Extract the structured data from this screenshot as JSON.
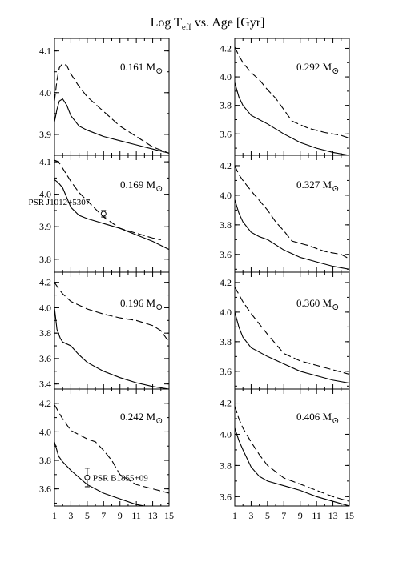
{
  "title": {
    "main": "Log T",
    "sub": "eff",
    "rest": " vs. Age [Gyr]"
  },
  "sun_symbol": "⊙",
  "x_ticks": [
    "1",
    "3",
    "5",
    "7",
    "9",
    "11",
    "13",
    "15"
  ],
  "chart_data": [
    {
      "type": "line",
      "panel": "left-1",
      "mass_value": "0.161 M",
      "xlim": [
        1,
        15
      ],
      "ylim": [
        3.85,
        4.13
      ],
      "yticks": [
        {
          "value": 3.9,
          "label": "3.9"
        },
        {
          "value": 4.0,
          "label": "4.0"
        },
        {
          "value": 4.1,
          "label": "4.1"
        }
      ],
      "series": [
        {
          "style": "solid",
          "points": [
            [
              1.0,
              3.93
            ],
            [
              1.3,
              3.96
            ],
            [
              1.6,
              3.98
            ],
            [
              2.0,
              3.985
            ],
            [
              2.5,
              3.97
            ],
            [
              3.0,
              3.945
            ],
            [
              4.0,
              3.92
            ],
            [
              5.0,
              3.91
            ],
            [
              7.0,
              3.895
            ],
            [
              9.0,
              3.885
            ],
            [
              11.0,
              3.875
            ],
            [
              13.0,
              3.865
            ],
            [
              15.0,
              3.855
            ]
          ]
        },
        {
          "style": "dashed",
          "points": [
            [
              1.0,
              3.98
            ],
            [
              1.3,
              4.03
            ],
            [
              1.6,
              4.06
            ],
            [
              2.0,
              4.07
            ],
            [
              2.5,
              4.065
            ],
            [
              3.0,
              4.045
            ],
            [
              4.0,
              4.015
            ],
            [
              5.0,
              3.99
            ],
            [
              7.0,
              3.955
            ],
            [
              9.0,
              3.92
            ],
            [
              11.0,
              3.895
            ],
            [
              13.0,
              3.87
            ],
            [
              15.0,
              3.855
            ]
          ]
        }
      ],
      "annotations": []
    },
    {
      "type": "line",
      "panel": "left-2",
      "mass_value": "0.169 M",
      "xlim": [
        1,
        15
      ],
      "ylim": [
        3.76,
        4.12
      ],
      "yticks": [
        {
          "value": 3.8,
          "label": "3.8"
        },
        {
          "value": 3.9,
          "label": "3.9"
        },
        {
          "value": 4.0,
          "label": "4.0"
        },
        {
          "value": 4.1,
          "label": "4.1"
        }
      ],
      "series": [
        {
          "style": "solid",
          "points": [
            [
              1.0,
              4.045
            ],
            [
              1.5,
              4.035
            ],
            [
              2.0,
              4.02
            ],
            [
              3.0,
              3.96
            ],
            [
              4.0,
              3.935
            ],
            [
              5.0,
              3.925
            ],
            [
              7.0,
              3.91
            ],
            [
              9.0,
              3.895
            ],
            [
              11.0,
              3.875
            ],
            [
              13.0,
              3.855
            ],
            [
              15.0,
              3.83
            ]
          ]
        },
        {
          "style": "dashed",
          "points": [
            [
              1.0,
              4.105
            ],
            [
              1.5,
              4.1
            ],
            [
              2.0,
              4.08
            ],
            [
              3.0,
              4.04
            ],
            [
              4.0,
              4.005
            ],
            [
              5.0,
              3.98
            ],
            [
              7.0,
              3.93
            ],
            [
              9.0,
              3.895
            ],
            [
              11.0,
              3.88
            ],
            [
              13.0,
              3.865
            ],
            [
              14.0,
              3.86
            ]
          ]
        }
      ],
      "annotations": [
        {
          "label": "PSR J1012+5307",
          "x": 7.0,
          "y": 3.94,
          "yerr": 0.01
        }
      ]
    },
    {
      "type": "line",
      "panel": "left-3",
      "mass_value": "0.196 M",
      "xlim": [
        1,
        15
      ],
      "ylim": [
        3.36,
        4.28
      ],
      "yticks": [
        {
          "value": 3.4,
          "label": "3.4"
        },
        {
          "value": 3.6,
          "label": "3.6"
        },
        {
          "value": 3.8,
          "label": "3.8"
        },
        {
          "value": 4.0,
          "label": "4.0"
        },
        {
          "value": 4.2,
          "label": "4.2"
        }
      ],
      "series": [
        {
          "style": "solid",
          "points": [
            [
              1.0,
              4.0
            ],
            [
              1.3,
              3.83
            ],
            [
              1.7,
              3.76
            ],
            [
              2.0,
              3.73
            ],
            [
              3.0,
              3.7
            ],
            [
              4.0,
              3.63
            ],
            [
              5.0,
              3.57
            ],
            [
              7.0,
              3.5
            ],
            [
              9.0,
              3.45
            ],
            [
              11.0,
              3.41
            ],
            [
              13.0,
              3.38
            ],
            [
              15.0,
              3.36
            ]
          ]
        },
        {
          "style": "dashed",
          "points": [
            [
              1.0,
              4.2
            ],
            [
              1.5,
              4.15
            ],
            [
              2.0,
              4.11
            ],
            [
              3.0,
              4.05
            ],
            [
              5.0,
              3.99
            ],
            [
              7.0,
              3.95
            ],
            [
              9.0,
              3.92
            ],
            [
              11.0,
              3.9
            ],
            [
              13.0,
              3.86
            ],
            [
              14.0,
              3.82
            ],
            [
              15.0,
              3.73
            ]
          ]
        }
      ],
      "annotations": []
    },
    {
      "type": "line",
      "panel": "left-4",
      "mass_value": "0.242 M",
      "xlim": [
        1,
        15
      ],
      "ylim": [
        3.48,
        4.3
      ],
      "yticks": [
        {
          "value": 3.6,
          "label": "3.6"
        },
        {
          "value": 3.8,
          "label": "3.8"
        },
        {
          "value": 4.0,
          "label": "4.0"
        },
        {
          "value": 4.2,
          "label": "4.2"
        }
      ],
      "series": [
        {
          "style": "solid",
          "points": [
            [
              1.0,
              3.93
            ],
            [
              1.5,
              3.83
            ],
            [
              2.0,
              3.79
            ],
            [
              3.0,
              3.73
            ],
            [
              5.0,
              3.63
            ],
            [
              7.0,
              3.57
            ],
            [
              9.0,
              3.53
            ],
            [
              11.0,
              3.49
            ],
            [
              12.0,
              3.48
            ]
          ]
        },
        {
          "style": "dashed",
          "points": [
            [
              1.0,
              4.19
            ],
            [
              2.0,
              4.09
            ],
            [
              3.0,
              4.01
            ],
            [
              5.0,
              3.95
            ],
            [
              6.0,
              3.93
            ],
            [
              7.0,
              3.87
            ],
            [
              8.0,
              3.8
            ],
            [
              9.0,
              3.7
            ],
            [
              11.0,
              3.63
            ],
            [
              13.0,
              3.6
            ],
            [
              15.0,
              3.57
            ]
          ]
        }
      ],
      "annotations": [
        {
          "label": "PSR B1855+09",
          "x": 5.0,
          "y": 3.68,
          "yerr": 0.065
        }
      ]
    },
    {
      "type": "line",
      "panel": "right-1",
      "mass_value": "0.292 M",
      "xlim": [
        1,
        15
      ],
      "ylim": [
        3.45,
        4.27
      ],
      "yticks": [
        {
          "value": 3.6,
          "label": "3.6"
        },
        {
          "value": 3.8,
          "label": "3.8"
        },
        {
          "value": 4.0,
          "label": "4.0"
        },
        {
          "value": 4.2,
          "label": "4.2"
        }
      ],
      "series": [
        {
          "style": "solid",
          "points": [
            [
              1.0,
              3.96
            ],
            [
              1.5,
              3.86
            ],
            [
              2.0,
              3.8
            ],
            [
              3.0,
              3.73
            ],
            [
              5.0,
              3.67
            ],
            [
              7.0,
              3.6
            ],
            [
              9.0,
              3.54
            ],
            [
              11.0,
              3.5
            ],
            [
              13.0,
              3.47
            ],
            [
              15.0,
              3.45
            ]
          ]
        },
        {
          "style": "dashed",
          "points": [
            [
              1.0,
              4.21
            ],
            [
              1.5,
              4.15
            ],
            [
              2.0,
              4.1
            ],
            [
              3.0,
              4.03
            ],
            [
              4.0,
              3.98
            ],
            [
              5.0,
              3.91
            ],
            [
              6.0,
              3.85
            ],
            [
              7.0,
              3.77
            ],
            [
              8.0,
              3.69
            ],
            [
              10.0,
              3.64
            ],
            [
              12.0,
              3.61
            ],
            [
              14.0,
              3.59
            ],
            [
              15.0,
              3.57
            ]
          ]
        }
      ],
      "annotations": []
    },
    {
      "type": "line",
      "panel": "right-2",
      "mass_value": "0.327 M",
      "xlim": [
        1,
        15
      ],
      "ylim": [
        3.48,
        4.27
      ],
      "yticks": [
        {
          "value": 3.6,
          "label": "3.6"
        },
        {
          "value": 3.8,
          "label": "3.8"
        },
        {
          "value": 4.0,
          "label": "4.0"
        },
        {
          "value": 4.2,
          "label": "4.2"
        }
      ],
      "series": [
        {
          "style": "solid",
          "points": [
            [
              1.0,
              3.97
            ],
            [
              1.5,
              3.88
            ],
            [
              2.0,
              3.82
            ],
            [
              3.0,
              3.75
            ],
            [
              4.0,
              3.72
            ],
            [
              5.0,
              3.7
            ],
            [
              7.0,
              3.63
            ],
            [
              9.0,
              3.58
            ],
            [
              11.0,
              3.55
            ],
            [
              13.0,
              3.52
            ],
            [
              15.0,
              3.5
            ]
          ]
        },
        {
          "style": "dashed",
          "points": [
            [
              1.0,
              4.2
            ],
            [
              1.5,
              4.14
            ],
            [
              2.0,
              4.1
            ],
            [
              3.0,
              4.03
            ],
            [
              5.0,
              3.9
            ],
            [
              6.0,
              3.82
            ],
            [
              7.0,
              3.76
            ],
            [
              8.0,
              3.69
            ],
            [
              10.0,
              3.66
            ],
            [
              12.0,
              3.62
            ],
            [
              14.0,
              3.6
            ],
            [
              15.0,
              3.57
            ]
          ]
        }
      ],
      "annotations": []
    },
    {
      "type": "line",
      "panel": "right-3",
      "mass_value": "0.360 M",
      "xlim": [
        1,
        15
      ],
      "ylim": [
        3.48,
        4.27
      ],
      "yticks": [
        {
          "value": 3.6,
          "label": "3.6"
        },
        {
          "value": 3.8,
          "label": "3.8"
        },
        {
          "value": 4.0,
          "label": "4.0"
        },
        {
          "value": 4.2,
          "label": "4.2"
        }
      ],
      "series": [
        {
          "style": "solid",
          "points": [
            [
              1.0,
              4.0
            ],
            [
              1.5,
              3.9
            ],
            [
              2.0,
              3.83
            ],
            [
              3.0,
              3.76
            ],
            [
              5.0,
              3.7
            ],
            [
              7.0,
              3.65
            ],
            [
              9.0,
              3.6
            ],
            [
              11.0,
              3.57
            ],
            [
              13.0,
              3.54
            ],
            [
              15.0,
              3.52
            ]
          ]
        },
        {
          "style": "dashed",
          "points": [
            [
              1.0,
              4.17
            ],
            [
              1.5,
              4.12
            ],
            [
              2.0,
              4.07
            ],
            [
              3.0,
              3.99
            ],
            [
              5.0,
              3.85
            ],
            [
              7.0,
              3.72
            ],
            [
              9.0,
              3.67
            ],
            [
              11.0,
              3.64
            ],
            [
              13.0,
              3.61
            ],
            [
              15.0,
              3.58
            ]
          ]
        }
      ],
      "annotations": []
    },
    {
      "type": "line",
      "panel": "right-4",
      "mass_value": "0.406 M",
      "xlim": [
        1,
        15
      ],
      "ylim": [
        3.54,
        4.29
      ],
      "yticks": [
        {
          "value": 3.6,
          "label": "3.6"
        },
        {
          "value": 3.8,
          "label": "3.8"
        },
        {
          "value": 4.0,
          "label": "4.0"
        },
        {
          "value": 4.2,
          "label": "4.2"
        }
      ],
      "series": [
        {
          "style": "solid",
          "points": [
            [
              1.0,
              4.04
            ],
            [
              1.5,
              3.96
            ],
            [
              2.0,
              3.9
            ],
            [
              3.0,
              3.79
            ],
            [
              4.0,
              3.73
            ],
            [
              5.0,
              3.7
            ],
            [
              7.0,
              3.67
            ],
            [
              9.0,
              3.64
            ],
            [
              11.0,
              3.6
            ],
            [
              13.0,
              3.57
            ],
            [
              15.0,
              3.54
            ]
          ]
        },
        {
          "style": "dashed",
          "points": [
            [
              1.0,
              4.18
            ],
            [
              1.5,
              4.1
            ],
            [
              2.0,
              4.04
            ],
            [
              3.0,
              3.95
            ],
            [
              4.0,
              3.87
            ],
            [
              5.0,
              3.8
            ],
            [
              7.0,
              3.72
            ],
            [
              9.0,
              3.68
            ],
            [
              11.0,
              3.64
            ],
            [
              13.0,
              3.6
            ],
            [
              15.0,
              3.57
            ]
          ]
        }
      ],
      "annotations": []
    }
  ]
}
